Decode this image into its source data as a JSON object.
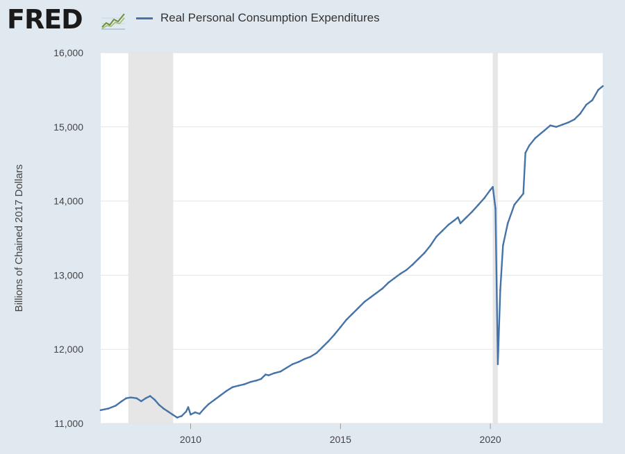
{
  "logo": {
    "text": "FRED"
  },
  "legend": {
    "label": "Real Personal Consumption Expenditures",
    "color": "#4572a7"
  },
  "chart_data": {
    "type": "line",
    "title": "",
    "xlabel": "",
    "ylabel": "Billions of Chained 2017 Dollars",
    "xlim": [
      2007.0,
      2023.75
    ],
    "ylim": [
      11000,
      16000
    ],
    "x_ticks": [
      2010,
      2015,
      2020
    ],
    "x_tick_labels": [
      "2010",
      "2015",
      "2020"
    ],
    "y_ticks": [
      11000,
      12000,
      13000,
      14000,
      15000,
      16000
    ],
    "y_tick_labels": [
      "11,000",
      "12,000",
      "13,000",
      "14,000",
      "15,000",
      "16,000"
    ],
    "grid": true,
    "legend_position": "top-left",
    "background_color": "#e1e9f0",
    "plot_background": "#ffffff",
    "recession_shading": [
      {
        "start": 2007.92,
        "end": 2009.42
      },
      {
        "start": 2020.08,
        "end": 2020.25
      }
    ],
    "series": [
      {
        "name": "Real Personal Consumption Expenditures",
        "color": "#4572a7",
        "points": [
          [
            2007.0,
            11180
          ],
          [
            2007.25,
            11200
          ],
          [
            2007.5,
            11240
          ],
          [
            2007.7,
            11300
          ],
          [
            2007.85,
            11340
          ],
          [
            2008.0,
            11350
          ],
          [
            2008.2,
            11340
          ],
          [
            2008.35,
            11300
          ],
          [
            2008.5,
            11340
          ],
          [
            2008.65,
            11370
          ],
          [
            2008.8,
            11320
          ],
          [
            2008.95,
            11250
          ],
          [
            2009.1,
            11200
          ],
          [
            2009.25,
            11160
          ],
          [
            2009.4,
            11120
          ],
          [
            2009.55,
            11080
          ],
          [
            2009.7,
            11100
          ],
          [
            2009.85,
            11160
          ],
          [
            2009.92,
            11220
          ],
          [
            2010.0,
            11120
          ],
          [
            2010.15,
            11150
          ],
          [
            2010.3,
            11130
          ],
          [
            2010.45,
            11200
          ],
          [
            2010.6,
            11260
          ],
          [
            2010.8,
            11320
          ],
          [
            2011.0,
            11380
          ],
          [
            2011.2,
            11440
          ],
          [
            2011.4,
            11490
          ],
          [
            2011.6,
            11510
          ],
          [
            2011.8,
            11530
          ],
          [
            2012.0,
            11560
          ],
          [
            2012.2,
            11580
          ],
          [
            2012.35,
            11600
          ],
          [
            2012.5,
            11660
          ],
          [
            2012.6,
            11650
          ],
          [
            2012.8,
            11680
          ],
          [
            2013.0,
            11700
          ],
          [
            2013.2,
            11750
          ],
          [
            2013.4,
            11800
          ],
          [
            2013.6,
            11830
          ],
          [
            2013.8,
            11870
          ],
          [
            2014.0,
            11900
          ],
          [
            2014.2,
            11950
          ],
          [
            2014.4,
            12030
          ],
          [
            2014.6,
            12110
          ],
          [
            2014.8,
            12200
          ],
          [
            2015.0,
            12300
          ],
          [
            2015.2,
            12400
          ],
          [
            2015.4,
            12480
          ],
          [
            2015.6,
            12560
          ],
          [
            2015.8,
            12640
          ],
          [
            2016.0,
            12700
          ],
          [
            2016.2,
            12760
          ],
          [
            2016.4,
            12820
          ],
          [
            2016.6,
            12900
          ],
          [
            2016.8,
            12960
          ],
          [
            2017.0,
            13020
          ],
          [
            2017.2,
            13070
          ],
          [
            2017.4,
            13140
          ],
          [
            2017.6,
            13220
          ],
          [
            2017.8,
            13300
          ],
          [
            2018.0,
            13400
          ],
          [
            2018.2,
            13520
          ],
          [
            2018.4,
            13600
          ],
          [
            2018.6,
            13680
          ],
          [
            2018.8,
            13740
          ],
          [
            2018.92,
            13780
          ],
          [
            2019.0,
            13700
          ],
          [
            2019.2,
            13780
          ],
          [
            2019.4,
            13860
          ],
          [
            2019.6,
            13950
          ],
          [
            2019.8,
            14040
          ],
          [
            2020.0,
            14150
          ],
          [
            2020.08,
            14190
          ],
          [
            2020.17,
            13900
          ],
          [
            2020.25,
            11800
          ],
          [
            2020.33,
            12800
          ],
          [
            2020.42,
            13400
          ],
          [
            2020.58,
            13700
          ],
          [
            2020.8,
            13950
          ],
          [
            2021.0,
            14050
          ],
          [
            2021.1,
            14100
          ],
          [
            2021.17,
            14650
          ],
          [
            2021.3,
            14750
          ],
          [
            2021.5,
            14850
          ],
          [
            2021.8,
            14950
          ],
          [
            2022.0,
            15020
          ],
          [
            2022.2,
            15000
          ],
          [
            2022.4,
            15030
          ],
          [
            2022.6,
            15060
          ],
          [
            2022.8,
            15100
          ],
          [
            2023.0,
            15180
          ],
          [
            2023.2,
            15300
          ],
          [
            2023.4,
            15360
          ],
          [
            2023.6,
            15500
          ],
          [
            2023.75,
            15550
          ]
        ]
      }
    ]
  }
}
